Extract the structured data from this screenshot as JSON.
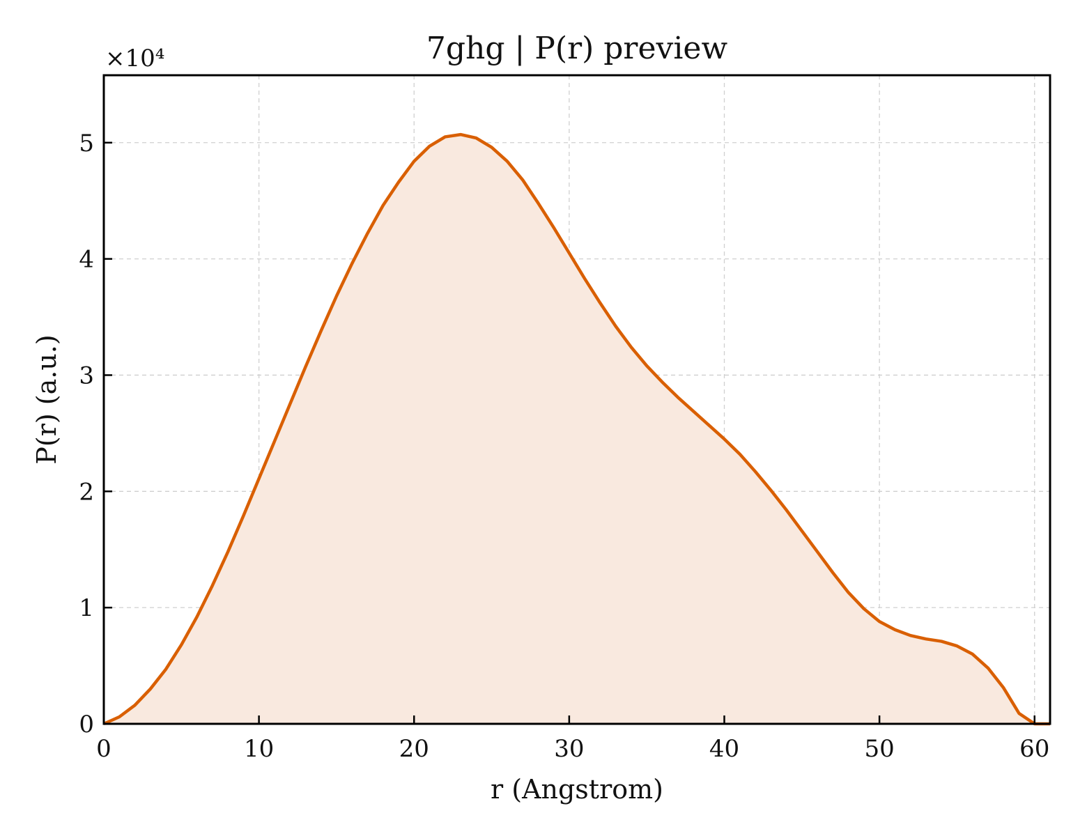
{
  "chart_data": {
    "type": "area",
    "title": "7ghg | P(r) preview",
    "xlabel": "r (Angstrom)",
    "ylabel": "P(r) (a.u.)",
    "y_multiplier_label": "×10⁴",
    "y_scale": 10000,
    "xlim": [
      0,
      61
    ],
    "ylim": [
      0,
      55800
    ],
    "x_ticks": [
      0,
      10,
      20,
      30,
      40,
      50,
      60
    ],
    "x_tick_labels": [
      "0",
      "10",
      "20",
      "30",
      "40",
      "50",
      "60"
    ],
    "y_ticks": [
      0,
      10000,
      20000,
      30000,
      40000,
      50000
    ],
    "y_tick_labels": [
      "0",
      "1",
      "2",
      "3",
      "4",
      "5"
    ],
    "grid": true,
    "colors": {
      "line": "#d95f02",
      "fill": "#f9e9df"
    },
    "series": [
      {
        "x": [
          0,
          1,
          2,
          3,
          4,
          5,
          6,
          7,
          8,
          9,
          10,
          11,
          12,
          13,
          14,
          15,
          16,
          17,
          18,
          19,
          20,
          21,
          22,
          23,
          24,
          25,
          26,
          27,
          28,
          29,
          30,
          31,
          32,
          33,
          34,
          35,
          36,
          37,
          38,
          39,
          40,
          41,
          42,
          43,
          44,
          45,
          46,
          47,
          48,
          49,
          50,
          51,
          52,
          53,
          54,
          55,
          56,
          57,
          58,
          59,
          60,
          61
        ],
        "y": [
          0,
          600,
          1600,
          3000,
          4700,
          6800,
          9200,
          11900,
          14800,
          17900,
          21100,
          24300,
          27500,
          30700,
          33800,
          36800,
          39600,
          42200,
          44600,
          46600,
          48400,
          49700,
          50500,
          50700,
          50400,
          49600,
          48400,
          46800,
          44800,
          42700,
          40500,
          38300,
          36200,
          34200,
          32400,
          30800,
          29400,
          28100,
          26900,
          25700,
          24500,
          23200,
          21700,
          20100,
          18400,
          16600,
          14800,
          13000,
          11300,
          9900,
          8800,
          8100,
          7600,
          7300,
          7100,
          6700,
          6000,
          4800,
          3100,
          900,
          0,
          0
        ]
      }
    ]
  }
}
